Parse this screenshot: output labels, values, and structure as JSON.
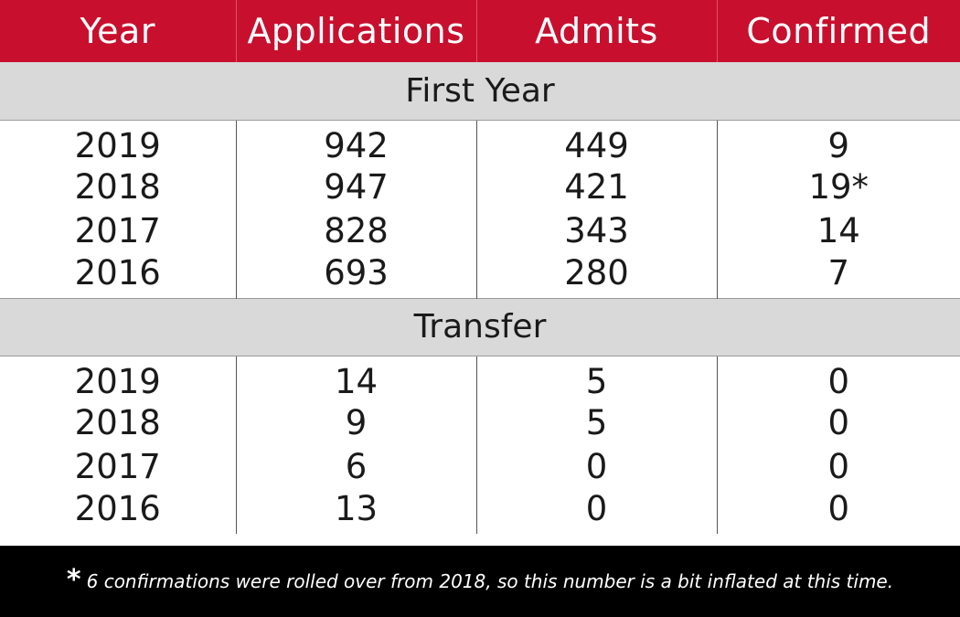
{
  "table": {
    "headers": [
      "Year",
      "Applications",
      "Admits",
      "Confirmed"
    ],
    "sections": [
      {
        "title": "First Year",
        "rows": [
          {
            "year": "2019",
            "applications": "942",
            "admits": "449",
            "confirmed": "9"
          },
          {
            "year": "2018",
            "applications": "947",
            "admits": "421",
            "confirmed": "19*"
          },
          {
            "year": "2017",
            "applications": "828",
            "admits": "343",
            "confirmed": "14"
          },
          {
            "year": "2016",
            "applications": "693",
            "admits": "280",
            "confirmed": "7"
          }
        ]
      },
      {
        "title": "Transfer",
        "rows": [
          {
            "year": "2019",
            "applications": "14",
            "admits": "5",
            "confirmed": "0"
          },
          {
            "year": "2018",
            "applications": "9",
            "admits": "5",
            "confirmed": "0"
          },
          {
            "year": "2017",
            "applications": "6",
            "admits": "0",
            "confirmed": "0"
          },
          {
            "year": "2016",
            "applications": "13",
            "admits": "0",
            "confirmed": "0"
          }
        ]
      }
    ]
  },
  "footnote": {
    "marker": "*",
    "text": "6 confirmations were rolled over from 2018, so this number is a bit inflated at this time."
  },
  "colors": {
    "header_bg": "#c8102e",
    "section_bg": "#d9d9d9",
    "footnote_bg": "#000000"
  }
}
